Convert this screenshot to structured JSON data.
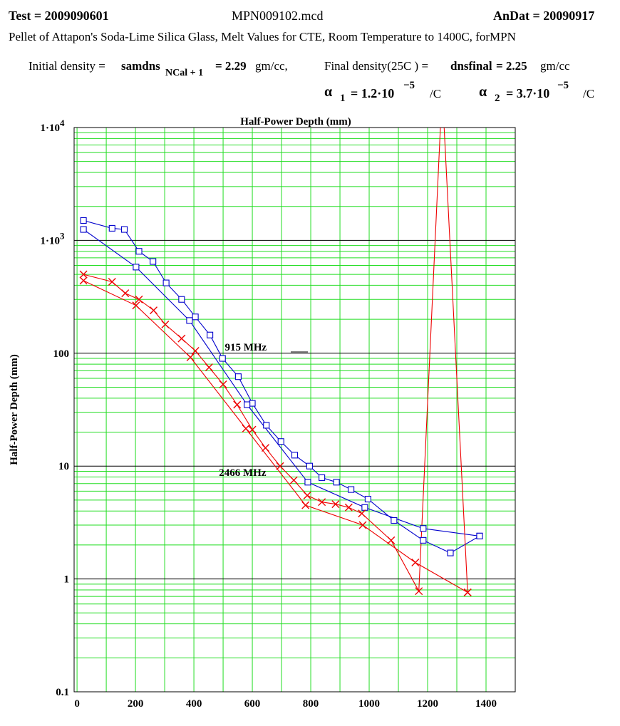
{
  "header": {
    "test": "Test = 2009090601",
    "file": "MPN009102.mcd",
    "andat": "AnDat = 20090917",
    "description": "Pellet of Attapon's Soda-Lime Silica Glass, Melt Values for CTE,  Room Temperature to 1400C,  forMPN",
    "initial_density_label": "Initial density =",
    "initial_density_var": "samdns",
    "initial_density_sub": "NCal + 1",
    "initial_density_value": "= 2.29",
    "initial_density_unit": "gm/cc,",
    "final_density_label": "Final density(25C ) =",
    "final_density_var": "dnsfinal",
    "final_density_value": "= 2.25",
    "final_density_unit": "gm/cc",
    "alpha1_symbol": "α",
    "alpha1_sub": "1",
    "alpha1_value": "= 1.2·10",
    "alpha1_exp": "−5",
    "alpha1_unit": "/C",
    "alpha2_symbol": "α",
    "alpha2_sub": "2",
    "alpha2_value": "= 3.7·10",
    "alpha2_exp": "−5",
    "alpha2_unit": "/C"
  },
  "chart_data": {
    "type": "line",
    "title": "Half-Power Depth (mm)",
    "xlabel": "",
    "ylabel": "Half-Power Depth (mm)",
    "xlim": [
      -10,
      1500
    ],
    "ylim": [
      0.1,
      10000
    ],
    "yscale": "log",
    "grid": true,
    "x_ticks": [
      0,
      200,
      400,
      600,
      800,
      1000,
      1200,
      1400
    ],
    "y_ticks": [
      {
        "value": 0.1,
        "label": "0.1"
      },
      {
        "value": 1,
        "label": "1"
      },
      {
        "value": 10,
        "label": "10"
      },
      {
        "value": 100,
        "label": "100"
      },
      {
        "value": 1000,
        "label": "1·10",
        "exp": "3"
      },
      {
        "value": 10000,
        "label": "1·10",
        "exp": "4"
      }
    ],
    "annotations": [
      {
        "text": "915  MHz",
        "x": 540,
        "y": 100
      },
      {
        "text": "2466  MHz",
        "x": 520,
        "y": 7.7
      }
    ],
    "series": [
      {
        "color": "#0000cc",
        "marker": "square",
        "points": [
          [
            22,
            1500
          ],
          [
            120,
            1280
          ],
          [
            162,
            1250
          ],
          [
            212,
            800
          ],
          [
            260,
            650
          ],
          [
            305,
            420
          ],
          [
            358,
            300
          ],
          [
            405,
            210
          ],
          [
            455,
            145
          ],
          [
            498,
            90
          ],
          [
            552,
            62
          ],
          [
            600,
            36
          ],
          [
            648,
            23
          ],
          [
            698,
            16.5
          ],
          [
            745,
            12.5
          ],
          [
            796,
            10
          ],
          [
            838,
            7.9
          ],
          [
            888,
            7.2
          ],
          [
            938,
            6.2
          ],
          [
            996,
            5.1
          ],
          [
            1085,
            3.3
          ],
          [
            1185,
            2.2
          ],
          [
            1278,
            1.7
          ],
          [
            1378,
            2.4
          ]
        ]
      },
      {
        "color": "#0000cc",
        "marker": "square",
        "points": [
          [
            22,
            1250
          ],
          [
            202,
            580
          ],
          [
            385,
            195
          ],
          [
            582,
            35
          ],
          [
            790,
            7.2
          ],
          [
            985,
            4.3
          ],
          [
            1185,
            2.8
          ],
          [
            1378,
            2.4
          ]
        ]
      },
      {
        "color": "#ee0000",
        "marker": "x",
        "points": [
          [
            22,
            500
          ],
          [
            120,
            430
          ],
          [
            165,
            340
          ],
          [
            212,
            300
          ],
          [
            262,
            240
          ],
          [
            302,
            180
          ],
          [
            358,
            135
          ],
          [
            405,
            105
          ],
          [
            452,
            75
          ],
          [
            500,
            53
          ],
          [
            548,
            35
          ],
          [
            600,
            21
          ],
          [
            645,
            14.5
          ],
          [
            695,
            10
          ],
          [
            742,
            7.5
          ],
          [
            788,
            5.5
          ],
          [
            838,
            4.8
          ],
          [
            885,
            4.6
          ],
          [
            930,
            4.3
          ],
          [
            975,
            3.8
          ],
          [
            1075,
            2.2
          ],
          [
            1170,
            0.78
          ],
          [
            1250,
            22000
          ],
          [
            1337,
            0.76
          ]
        ]
      },
      {
        "color": "#ee0000",
        "marker": "x",
        "points": [
          [
            22,
            440
          ],
          [
            202,
            265
          ],
          [
            388,
            92
          ],
          [
            578,
            21.5
          ],
          [
            782,
            4.5
          ],
          [
            978,
            3.0
          ],
          [
            1158,
            1.4
          ],
          [
            1337,
            0.76
          ]
        ]
      }
    ]
  }
}
